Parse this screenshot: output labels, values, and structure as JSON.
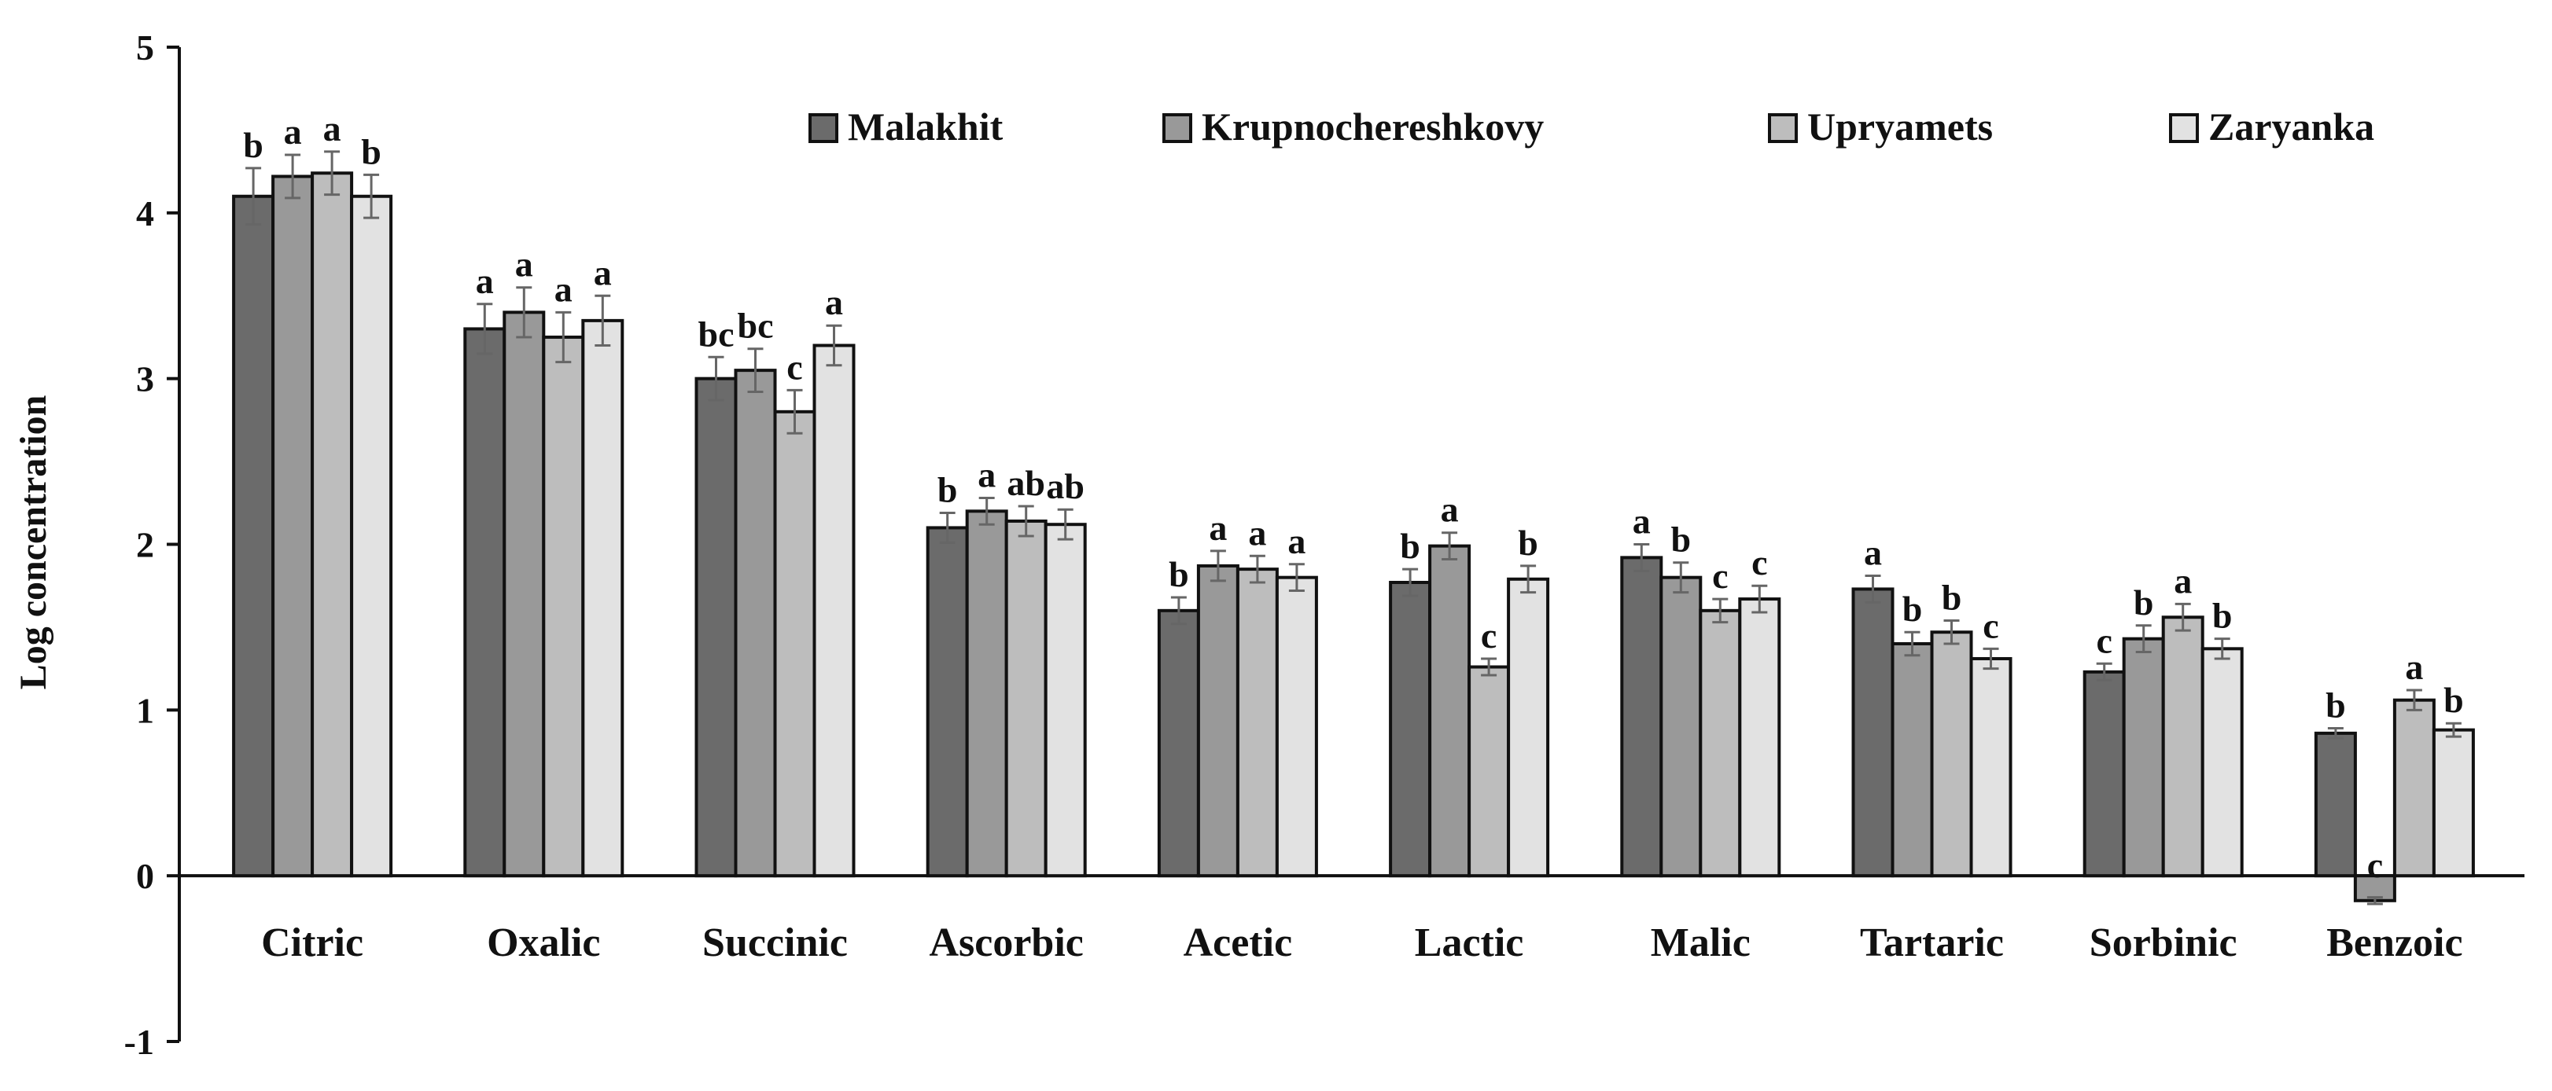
{
  "chart_data": {
    "type": "bar",
    "ylabel": "Log concentration",
    "ylim": [
      -1,
      5
    ],
    "yticks": [
      -1,
      0,
      1,
      2,
      3,
      4,
      5
    ],
    "legend_position": "top-right",
    "categories": [
      "Citric",
      "Oxalic",
      "Succinic",
      "Ascorbic",
      "Acetic",
      "Lactic",
      "Malic",
      "Tartaric",
      "Sorbinic",
      "Benzoic"
    ],
    "series": [
      {
        "name": "Malakhit",
        "color": "#6b6b6b",
        "values": [
          4.1,
          3.3,
          3.0,
          2.1,
          1.6,
          1.77,
          1.92,
          1.73,
          1.23,
          0.86
        ],
        "errors": [
          0.17,
          0.15,
          0.13,
          0.09,
          0.08,
          0.08,
          0.08,
          0.08,
          0.05,
          0.03
        ],
        "labels": [
          "b",
          "a",
          "bc",
          "b",
          "b",
          "b",
          "a",
          "a",
          "c",
          "b"
        ]
      },
      {
        "name": "Krupnochereshkovy",
        "color": "#999999",
        "values": [
          4.22,
          3.4,
          3.05,
          2.2,
          1.87,
          1.99,
          1.8,
          1.4,
          1.43,
          -0.15
        ],
        "errors": [
          0.13,
          0.15,
          0.13,
          0.08,
          0.09,
          0.08,
          0.09,
          0.07,
          0.08,
          0.02
        ],
        "labels": [
          "a",
          "a",
          "bc",
          "a",
          "a",
          "a",
          "b",
          "b",
          "b",
          "c"
        ]
      },
      {
        "name": "Upryamets",
        "color": "#bdbdbd",
        "values": [
          4.24,
          3.25,
          2.8,
          2.14,
          1.85,
          1.26,
          1.6,
          1.47,
          1.56,
          1.06
        ],
        "errors": [
          0.13,
          0.15,
          0.13,
          0.09,
          0.08,
          0.05,
          0.07,
          0.07,
          0.08,
          0.06
        ],
        "labels": [
          "a",
          "a",
          "c",
          "ab",
          "a",
          "c",
          "c",
          "b",
          "a",
          "a"
        ]
      },
      {
        "name": "Zaryanka",
        "color": "#e2e2e2",
        "values": [
          4.1,
          3.35,
          3.2,
          2.12,
          1.8,
          1.79,
          1.67,
          1.31,
          1.37,
          0.88
        ],
        "errors": [
          0.13,
          0.15,
          0.12,
          0.09,
          0.08,
          0.08,
          0.08,
          0.06,
          0.06,
          0.04
        ],
        "labels": [
          "b",
          "a",
          "a",
          "ab",
          "a",
          "b",
          "c",
          "c",
          "b",
          "b"
        ]
      }
    ]
  }
}
